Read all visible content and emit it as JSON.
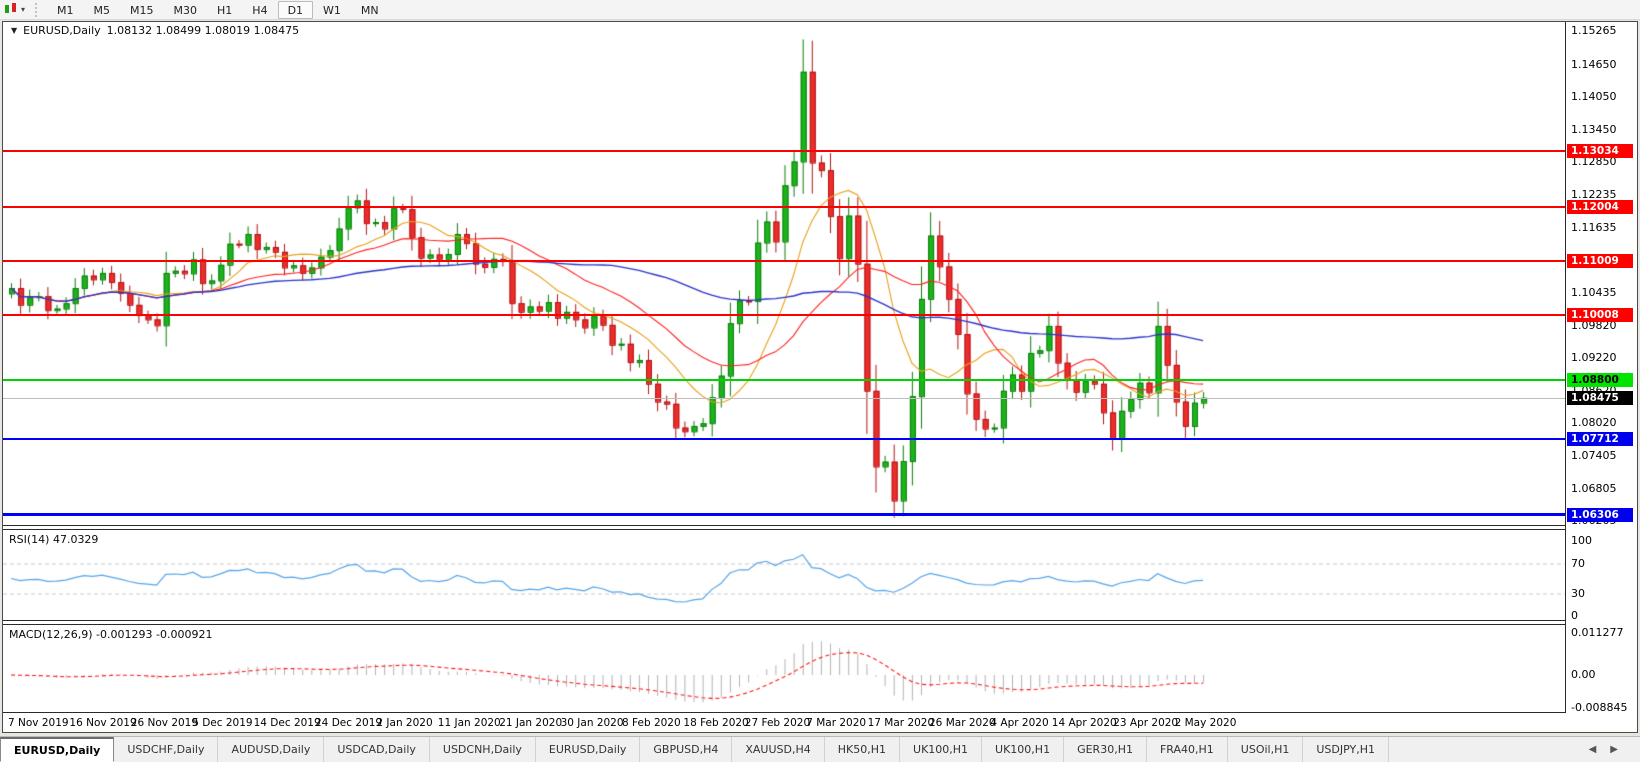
{
  "toolbar": {
    "timeframes": [
      "M1",
      "M5",
      "M15",
      "M30",
      "H1",
      "H4",
      "D1",
      "W1",
      "MN"
    ],
    "active_timeframe": "D1",
    "chart_tool_caret": "▾"
  },
  "chart": {
    "collapse_arrow": "▼",
    "title_symbol": "EURUSD,Daily",
    "ohlc_text": "1.08132 1.08499 1.08019 1.08475",
    "open": "1.08132",
    "high": "1.08499",
    "low": "1.08019",
    "close": "1.08475"
  },
  "price_axis": {
    "ticks": [
      "1.15265",
      "1.14650",
      "1.14050",
      "1.13450",
      "1.12850",
      "1.12235",
      "1.11635",
      "1.10435",
      "1.09820",
      "1.09220",
      "1.08620",
      "1.08020",
      "1.07405",
      "1.06805",
      "1.06205"
    ],
    "range_top": 1.1542,
    "range_bottom": 1.061
  },
  "levels": [
    {
      "price": 1.13034,
      "label": "1.13034",
      "color": "#ff0000",
      "thickness": 2,
      "badge_bg": "#ff0000",
      "badge_fg": "#ffffff"
    },
    {
      "price": 1.12004,
      "label": "1.12004",
      "color": "#ff0000",
      "thickness": 2,
      "badge_bg": "#ff0000",
      "badge_fg": "#ffffff"
    },
    {
      "price": 1.11009,
      "label": "1.11009",
      "color": "#ff0000",
      "thickness": 2,
      "badge_bg": "#ff0000",
      "badge_fg": "#ffffff"
    },
    {
      "price": 1.10008,
      "label": "1.10008",
      "color": "#ff0000",
      "thickness": 2,
      "badge_bg": "#ff0000",
      "badge_fg": "#ffffff"
    },
    {
      "price": 1.088,
      "label": "1.08800",
      "color": "#00d300",
      "thickness": 2,
      "badge_bg": "#00e400",
      "badge_fg": "#000000"
    },
    {
      "price": 1.07712,
      "label": "1.07712",
      "color": "#0000ff",
      "thickness": 2,
      "badge_bg": "#0000ee",
      "badge_fg": "#ffffff"
    },
    {
      "price": 1.06306,
      "label": "1.06306",
      "color": "#0000ff",
      "thickness": 3,
      "badge_bg": "#0000ee",
      "badge_fg": "#ffffff"
    }
  ],
  "bid_line": {
    "price": 1.08475,
    "label": "1.08475",
    "line_color": "#bdbdbd",
    "badge_bg": "#000000",
    "badge_fg": "#ffffff"
  },
  "rsi_panel": {
    "label": "RSI(14) 47.0329",
    "ticks": [
      {
        "v": 100,
        "label": "100"
      },
      {
        "v": 70,
        "label": "70"
      },
      {
        "v": 30,
        "label": "30"
      },
      {
        "v": 0,
        "label": "0"
      }
    ],
    "dashed_levels": [
      70,
      30
    ],
    "line_color": "#55a5e8"
  },
  "macd_panel": {
    "label": "MACD(12,26,9) -0.001293 -0.000921",
    "ticks": [
      {
        "v": 0.011277,
        "label": "0.011277"
      },
      {
        "v": 0,
        "label": "0.00"
      },
      {
        "v": -0.008845,
        "label": "-0.008845"
      }
    ],
    "histogram_color": "#b3b3b3",
    "signal_color": "#ff1a1a"
  },
  "chart_data": {
    "type": "candlestick",
    "symbol": "EURUSD",
    "timeframe": "Daily",
    "up_fill": "#1cb41c",
    "up_border": "#0d7d0d",
    "down_fill": "#ed2c2c",
    "down_border": "#b01616",
    "closes": [
      1.105,
      1.1019,
      1.1033,
      1.1035,
      1.1009,
      1.1012,
      1.1022,
      1.105,
      1.1073,
      1.1066,
      1.1078,
      1.1061,
      1.1041,
      1.1019,
      1.1,
      1.0992,
      1.0981,
      1.1078,
      1.1082,
      1.1077,
      1.1103,
      1.1059,
      1.1064,
      1.1093,
      1.1132,
      1.113,
      1.115,
      1.1122,
      1.1126,
      1.1117,
      1.1088,
      1.1092,
      1.1078,
      1.1088,
      1.1108,
      1.112,
      1.116,
      1.1199,
      1.1212,
      1.117,
      1.1172,
      1.116,
      1.1198,
      1.1196,
      1.1144,
      1.1106,
      1.1112,
      1.1103,
      1.1113,
      1.115,
      1.1133,
      1.1095,
      1.1089,
      1.1104,
      1.11,
      1.1022,
      1.1006,
      1.1016,
      1.1008,
      1.1024,
      1.0995,
      1.1006,
      1.0992,
      1.0977,
      1.0999,
      1.0982,
      1.0945,
      1.0947,
      1.0913,
      1.0917,
      1.0873,
      1.084,
      1.0836,
      1.0792,
      1.0785,
      1.0795,
      1.08,
      1.0848,
      1.0888,
      1.0985,
      1.1027,
      1.1026,
      1.1134,
      1.1173,
      1.1136,
      1.124,
      1.1284,
      1.145,
      1.1282,
      1.1268,
      1.1183,
      1.1105,
      1.1184,
      1.1095,
      1.086,
      1.072,
      1.0729,
      1.0657,
      1.073,
      1.085,
      1.103,
      1.1147,
      1.109,
      1.103,
      1.0965,
      1.0855,
      1.0808,
      1.079,
      1.0792,
      1.086,
      1.089,
      1.086,
      1.093,
      1.0935,
      1.098,
      1.0912,
      1.088,
      1.0858,
      1.0878,
      1.0873,
      1.082,
      1.0772,
      1.0823,
      1.0845,
      1.0875,
      1.0857,
      1.098,
      1.0908,
      1.084,
      1.0795,
      1.0838,
      1.0847
    ],
    "date_labels": [
      "7 Nov 2019",
      "16 Nov 2019",
      "26 Nov 2019",
      "5 Dec 2019",
      "14 Dec 2019",
      "24 Dec 2019",
      "2 Jan 2020",
      "11 Jan 2020",
      "21 Jan 2020",
      "30 Jan 2020",
      "8 Feb 2020",
      "18 Feb 2020",
      "27 Feb 2020",
      "7 Mar 2020",
      "17 Mar 2020",
      "26 Mar 2020",
      "4 Apr 2020",
      "14 Apr 2020",
      "23 Apr 2020",
      "2 May 2020"
    ],
    "moving_averages": [
      {
        "period": 10,
        "color": "#e8a01e"
      },
      {
        "period": 20,
        "color": "#ff2222"
      },
      {
        "period": 50,
        "color": "#2b35c8"
      }
    ],
    "indicators": {
      "rsi": {
        "period": 14,
        "current": 47.0329
      },
      "macd": {
        "fast": 12,
        "slow": 26,
        "signal": 9,
        "current_main": -0.001293,
        "current_signal": -0.000921
      }
    }
  },
  "tab_bar": {
    "tabs": [
      "EURUSD,Daily",
      "USDCHF,Daily",
      "AUDUSD,Daily",
      "USDCAD,Daily",
      "USDCNH,Daily",
      "EURUSD,Daily",
      "GBPUSD,H4",
      "XAUUSD,H4",
      "HK50,H1",
      "UK100,H1",
      "UK100,H1",
      "GER30,H1",
      "FRA40,H1",
      "USOil,H1",
      "USDJPY,H1"
    ],
    "active_index": 0,
    "scroll_left": "◀",
    "scroll_right": "▶"
  }
}
